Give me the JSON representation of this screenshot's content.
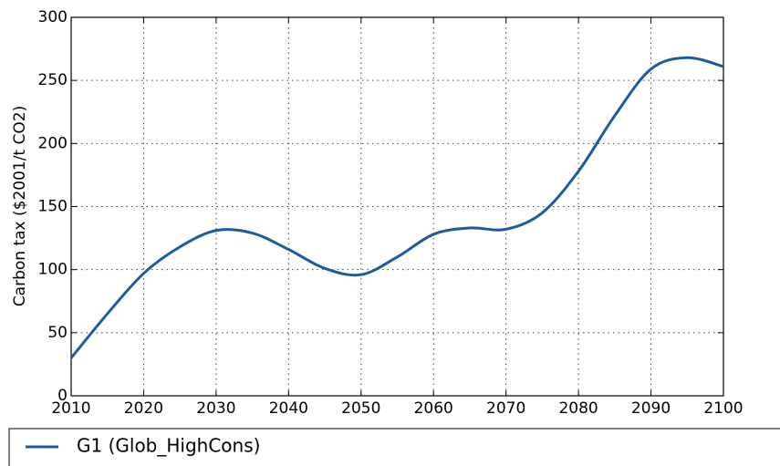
{
  "chart_data": {
    "type": "line",
    "ylabel": "Carbon tax ($2001/t CO2)",
    "x": [
      2010,
      2015,
      2020,
      2025,
      2030,
      2035,
      2040,
      2045,
      2050,
      2055,
      2060,
      2065,
      2070,
      2075,
      2080,
      2085,
      2090,
      2095,
      2100
    ],
    "series": [
      {
        "name": "G1 (Glob_HighCons)",
        "color": "#1f5b9c",
        "values": [
          30,
          65,
          97,
          118,
          131,
          129,
          116,
          101,
          96,
          110,
          128,
          133,
          132,
          145,
          178,
          222,
          259,
          268,
          261
        ]
      }
    ],
    "xlim": [
      2010,
      2100
    ],
    "xticks": [
      2010,
      2020,
      2030,
      2040,
      2050,
      2060,
      2070,
      2080,
      2090,
      2100
    ],
    "ylim": [
      0,
      300
    ],
    "yticks": [
      0,
      50,
      100,
      150,
      200,
      250,
      300
    ],
    "grid": true,
    "legend": "bottom"
  }
}
